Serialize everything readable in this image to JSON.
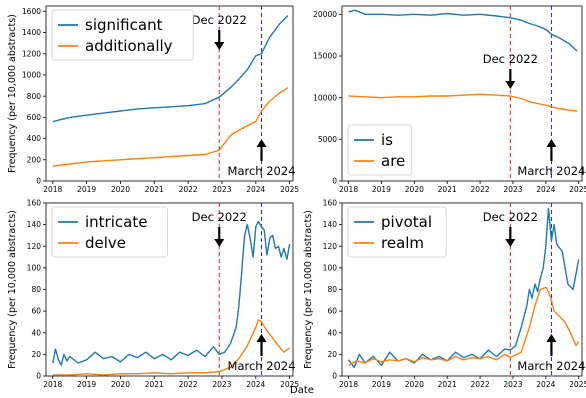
{
  "xlabel": "Date",
  "colors": {
    "blue": "#1f77b4",
    "orange": "#ff7f0e",
    "dec_line": "#d62728",
    "mar_line": "#1f1fd6"
  },
  "chart_data": [
    {
      "type": "line",
      "ylabel": "Frequency (per 10,000 abstracts)",
      "xlim": [
        2017.8,
        2025.1
      ],
      "ylim": [
        0,
        1650
      ],
      "xticks": [
        2018,
        2019,
        2020,
        2021,
        2022,
        2023,
        2024,
        2025
      ],
      "yticks": [
        0,
        200,
        400,
        600,
        800,
        1000,
        1200,
        1400,
        1600
      ],
      "legend_position": "top-left",
      "annotations": [
        {
          "text": "Dec 2022",
          "x": 2022.92,
          "position": "upper"
        },
        {
          "text": "March 2024",
          "x": 2024.17,
          "position": "lower"
        }
      ],
      "series": [
        {
          "name": "significant",
          "color": "#1f77b4",
          "x": [
            2018.0,
            2018.5,
            2019.0,
            2019.5,
            2020.0,
            2020.5,
            2021.0,
            2021.5,
            2022.0,
            2022.5,
            2022.92,
            2023.25,
            2023.5,
            2023.75,
            2024.0,
            2024.17,
            2024.4,
            2024.7,
            2024.95
          ],
          "values": [
            560,
            600,
            620,
            640,
            660,
            680,
            690,
            700,
            710,
            730,
            790,
            880,
            960,
            1050,
            1180,
            1200,
            1350,
            1480,
            1560
          ]
        },
        {
          "name": "additionally",
          "color": "#ff7f0e",
          "x": [
            2018.0,
            2018.5,
            2019.0,
            2019.5,
            2020.0,
            2020.5,
            2021.0,
            2021.5,
            2022.0,
            2022.5,
            2022.92,
            2023.25,
            2023.5,
            2023.75,
            2024.0,
            2024.17,
            2024.4,
            2024.7,
            2024.95
          ],
          "values": [
            140,
            160,
            180,
            190,
            200,
            210,
            220,
            230,
            240,
            250,
            290,
            430,
            480,
            520,
            560,
            660,
            750,
            830,
            880
          ]
        }
      ]
    },
    {
      "type": "line",
      "ylabel": "",
      "xlim": [
        2017.8,
        2025.1
      ],
      "ylim": [
        0,
        21000
      ],
      "xticks": [
        2018,
        2019,
        2020,
        2021,
        2022,
        2023,
        2024,
        2025
      ],
      "yticks": [
        0,
        5000,
        10000,
        15000,
        20000
      ],
      "legend_position": "bottom-left",
      "annotations": [
        {
          "text": "Dec 2022",
          "x": 2022.92,
          "position": "middle"
        },
        {
          "text": "March 2024",
          "x": 2024.17,
          "position": "lower"
        }
      ],
      "series": [
        {
          "name": "is",
          "color": "#1f77b4",
          "x": [
            2018.0,
            2018.2,
            2018.5,
            2019.0,
            2019.5,
            2020.0,
            2020.5,
            2021.0,
            2021.5,
            2022.0,
            2022.5,
            2022.92,
            2023.25,
            2023.5,
            2023.75,
            2024.0,
            2024.17,
            2024.4,
            2024.7,
            2024.95
          ],
          "values": [
            20300,
            20500,
            20000,
            20000,
            19900,
            20000,
            19900,
            20100,
            19900,
            20000,
            19800,
            19600,
            19300,
            18900,
            18600,
            18200,
            17600,
            17200,
            16500,
            15600
          ]
        },
        {
          "name": "are",
          "color": "#ff7f0e",
          "x": [
            2018.0,
            2018.5,
            2019.0,
            2019.5,
            2020.0,
            2020.5,
            2021.0,
            2021.5,
            2022.0,
            2022.5,
            2022.92,
            2023.25,
            2023.5,
            2023.75,
            2024.0,
            2024.17,
            2024.4,
            2024.7,
            2024.95
          ],
          "values": [
            10200,
            10100,
            10000,
            10100,
            10100,
            10200,
            10200,
            10300,
            10400,
            10300,
            10200,
            9900,
            9500,
            9300,
            9100,
            8900,
            8700,
            8500,
            8400
          ]
        }
      ]
    },
    {
      "type": "line",
      "ylabel": "Frequency (per 10,000 abstracts)",
      "xlim": [
        2017.8,
        2025.1
      ],
      "ylim": [
        0,
        160
      ],
      "xticks": [
        2018,
        2019,
        2020,
        2021,
        2022,
        2023,
        2024,
        2025
      ],
      "yticks": [
        0,
        20,
        40,
        60,
        80,
        100,
        120,
        140,
        160
      ],
      "legend_position": "top-left",
      "annotations": [
        {
          "text": "Dec 2022",
          "x": 2022.92,
          "position": "upper"
        },
        {
          "text": "March 2024",
          "x": 2024.17,
          "position": "lower"
        }
      ],
      "series": [
        {
          "name": "intricate",
          "color": "#1f77b4",
          "x": [
            2018.0,
            2018.08,
            2018.17,
            2018.25,
            2018.33,
            2018.42,
            2018.5,
            2018.75,
            2019.0,
            2019.25,
            2019.5,
            2019.75,
            2020.0,
            2020.25,
            2020.5,
            2020.75,
            2021.0,
            2021.25,
            2021.5,
            2021.75,
            2022.0,
            2022.25,
            2022.5,
            2022.75,
            2022.92,
            2023.08,
            2023.25,
            2023.42,
            2023.5,
            2023.58,
            2023.67,
            2023.75,
            2023.83,
            2023.92,
            2024.0,
            2024.08,
            2024.17,
            2024.25,
            2024.33,
            2024.42,
            2024.5,
            2024.58,
            2024.67,
            2024.75,
            2024.83,
            2024.92,
            2025.0
          ],
          "values": [
            12,
            25,
            15,
            10,
            20,
            14,
            18,
            12,
            15,
            22,
            16,
            18,
            13,
            20,
            17,
            22,
            16,
            20,
            15,
            22,
            19,
            24,
            18,
            27,
            20,
            22,
            30,
            45,
            65,
            95,
            130,
            140,
            128,
            110,
            138,
            143,
            138,
            135,
            112,
            128,
            130,
            118,
            120,
            110,
            118,
            108,
            122
          ]
        },
        {
          "name": "delve",
          "color": "#ff7f0e",
          "x": [
            2018.0,
            2018.5,
            2019.0,
            2019.5,
            2020.0,
            2020.5,
            2021.0,
            2021.5,
            2022.0,
            2022.5,
            2022.92,
            2023.25,
            2023.5,
            2023.75,
            2024.0,
            2024.08,
            2024.17,
            2024.33,
            2024.5,
            2024.67,
            2024.83,
            2025.0
          ],
          "values": [
            1,
            1,
            2,
            1,
            2,
            2,
            3,
            2,
            3,
            3,
            4,
            8,
            16,
            28,
            45,
            52,
            50,
            42,
            35,
            28,
            22,
            26
          ]
        }
      ]
    },
    {
      "type": "line",
      "ylabel": "Frequency (per 10,000 abstracts)",
      "xlim": [
        2017.8,
        2025.1
      ],
      "ylim": [
        0,
        160
      ],
      "xticks": [
        2018,
        2019,
        2020,
        2021,
        2022,
        2023,
        2024,
        2025
      ],
      "yticks": [
        0,
        20,
        40,
        60,
        80,
        100,
        120,
        140,
        160
      ],
      "legend_position": "top-left",
      "annotations": [
        {
          "text": "Dec 2022",
          "x": 2022.92,
          "position": "upper"
        },
        {
          "text": "March 2024",
          "x": 2024.17,
          "position": "lower"
        }
      ],
      "series": [
        {
          "name": "pivotal",
          "color": "#1f77b4",
          "x": [
            2018.0,
            2018.17,
            2018.33,
            2018.5,
            2018.75,
            2019.0,
            2019.25,
            2019.5,
            2019.75,
            2020.0,
            2020.25,
            2020.5,
            2020.75,
            2021.0,
            2021.25,
            2021.5,
            2021.75,
            2022.0,
            2022.25,
            2022.5,
            2022.75,
            2022.92,
            2023.08,
            2023.25,
            2023.42,
            2023.5,
            2023.58,
            2023.67,
            2023.75,
            2023.83,
            2023.92,
            2024.0,
            2024.08,
            2024.17,
            2024.25,
            2024.33,
            2024.5,
            2024.67,
            2024.83,
            2024.92,
            2025.0
          ],
          "values": [
            15,
            8,
            20,
            12,
            18,
            10,
            22,
            14,
            16,
            12,
            20,
            15,
            18,
            14,
            22,
            17,
            20,
            16,
            24,
            18,
            25,
            24,
            28,
            45,
            65,
            80,
            72,
            85,
            78,
            90,
            100,
            120,
            155,
            125,
            140,
            122,
            115,
            85,
            80,
            95,
            108
          ]
        },
        {
          "name": "realm",
          "color": "#ff7f0e",
          "x": [
            2018.0,
            2018.25,
            2018.5,
            2018.75,
            2019.0,
            2019.25,
            2019.5,
            2019.75,
            2020.0,
            2020.25,
            2020.5,
            2020.75,
            2021.0,
            2021.25,
            2021.5,
            2021.75,
            2022.0,
            2022.25,
            2022.5,
            2022.75,
            2022.92,
            2023.25,
            2023.5,
            2023.67,
            2023.83,
            2024.0,
            2024.08,
            2024.17,
            2024.25,
            2024.42,
            2024.58,
            2024.75,
            2024.92,
            2025.0
          ],
          "values": [
            10,
            14,
            12,
            16,
            13,
            15,
            14,
            16,
            13,
            17,
            15,
            16,
            14,
            18,
            15,
            17,
            16,
            18,
            15,
            20,
            17,
            22,
            45,
            65,
            80,
            82,
            78,
            70,
            60,
            55,
            50,
            40,
            28,
            32
          ]
        }
      ]
    }
  ]
}
